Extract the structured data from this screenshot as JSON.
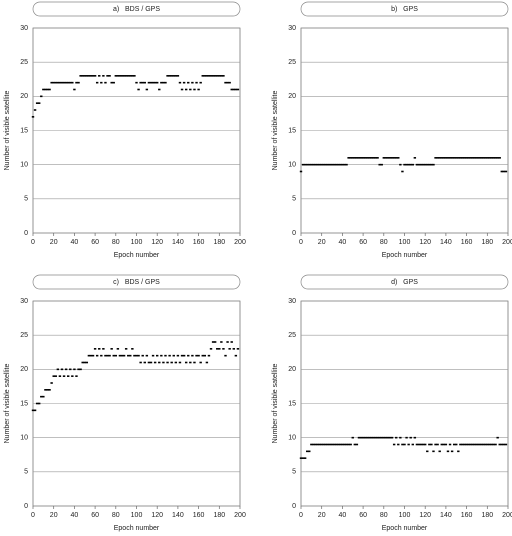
{
  "chart_data": [
    {
      "type": "scatter",
      "title": "a)   BDS / GPS",
      "xlabel": "Epoch number",
      "ylabel": "Number of visible satellite",
      "color": "#000000",
      "grid": true,
      "xlim": [
        0,
        200
      ],
      "ylim": [
        0,
        30
      ],
      "xticks": [
        0,
        20,
        40,
        60,
        80,
        100,
        120,
        140,
        160,
        180,
        200
      ],
      "yticks": [
        0,
        5,
        10,
        15,
        20,
        25,
        30
      ],
      "x": [
        0,
        2,
        4,
        6,
        8,
        10,
        12,
        14,
        16,
        18,
        20,
        22,
        24,
        26,
        28,
        30,
        32,
        34,
        36,
        38,
        40,
        42,
        44,
        46,
        48,
        50,
        52,
        54,
        56,
        58,
        60,
        62,
        64,
        66,
        68,
        70,
        72,
        74,
        76,
        78,
        80,
        82,
        84,
        86,
        88,
        90,
        92,
        94,
        96,
        98,
        100,
        102,
        104,
        106,
        108,
        110,
        112,
        114,
        116,
        118,
        120,
        122,
        124,
        126,
        128,
        130,
        132,
        134,
        136,
        138,
        140,
        142,
        144,
        146,
        148,
        150,
        152,
        154,
        156,
        158,
        160,
        162,
        164,
        166,
        168,
        170,
        172,
        174,
        176,
        178,
        180,
        182,
        184,
        186,
        188,
        190,
        192,
        194,
        196,
        198
      ],
      "values": [
        17,
        18,
        19,
        19,
        20,
        21,
        21,
        21,
        21,
        22,
        22,
        22,
        22,
        22,
        22,
        22,
        22,
        22,
        22,
        22,
        21,
        22,
        22,
        23,
        23,
        23,
        23,
        23,
        23,
        23,
        23,
        22,
        23,
        22,
        23,
        22,
        23,
        23,
        22,
        22,
        23,
        23,
        23,
        23,
        23,
        23,
        23,
        23,
        23,
        23,
        22,
        21,
        22,
        22,
        22,
        21,
        22,
        22,
        22,
        22,
        22,
        21,
        22,
        22,
        22,
        23,
        23,
        23,
        23,
        23,
        23,
        22,
        21,
        22,
        21,
        22,
        21,
        22,
        21,
        22,
        21,
        22,
        23,
        23,
        23,
        23,
        23,
        23,
        23,
        23,
        23,
        23,
        23,
        22,
        22,
        22,
        21,
        21,
        21,
        21
      ]
    },
    {
      "type": "scatter",
      "title": "b)   GPS",
      "xlabel": "Epoch number",
      "ylabel": "Number of visible satellite",
      "color": "#000000",
      "grid": true,
      "xlim": [
        0,
        200
      ],
      "ylim": [
        0,
        30
      ],
      "xticks": [
        0,
        20,
        40,
        60,
        80,
        100,
        120,
        140,
        160,
        180,
        200
      ],
      "yticks": [
        0,
        5,
        10,
        15,
        20,
        25,
        30
      ],
      "x": [
        0,
        2,
        4,
        6,
        8,
        10,
        12,
        14,
        16,
        18,
        20,
        22,
        24,
        26,
        28,
        30,
        32,
        34,
        36,
        38,
        40,
        42,
        44,
        46,
        48,
        50,
        52,
        54,
        56,
        58,
        60,
        62,
        64,
        66,
        68,
        70,
        72,
        74,
        76,
        78,
        80,
        82,
        84,
        86,
        88,
        90,
        92,
        94,
        96,
        98,
        100,
        102,
        104,
        106,
        108,
        110,
        112,
        114,
        116,
        118,
        120,
        122,
        124,
        126,
        128,
        130,
        132,
        134,
        136,
        138,
        140,
        142,
        144,
        146,
        148,
        150,
        152,
        154,
        156,
        158,
        160,
        162,
        164,
        166,
        168,
        170,
        172,
        174,
        176,
        178,
        180,
        182,
        184,
        186,
        188,
        190,
        192,
        194,
        196,
        198
      ],
      "values": [
        9,
        10,
        10,
        10,
        10,
        10,
        10,
        10,
        10,
        10,
        10,
        10,
        10,
        10,
        10,
        10,
        10,
        10,
        10,
        10,
        10,
        10,
        10,
        11,
        11,
        11,
        11,
        11,
        11,
        11,
        11,
        11,
        11,
        11,
        11,
        11,
        11,
        11,
        10,
        10,
        11,
        11,
        11,
        11,
        11,
        11,
        11,
        11,
        10,
        9,
        10,
        10,
        10,
        10,
        10,
        11,
        10,
        10,
        10,
        10,
        10,
        10,
        10,
        10,
        10,
        11,
        11,
        11,
        11,
        11,
        11,
        11,
        11,
        11,
        11,
        11,
        11,
        11,
        11,
        11,
        11,
        11,
        11,
        11,
        11,
        11,
        11,
        11,
        11,
        11,
        11,
        11,
        11,
        11,
        11,
        11,
        11,
        9,
        9,
        9
      ]
    },
    {
      "type": "scatter",
      "title": "c)   BDS / GPS",
      "xlabel": "Epoch number",
      "ylabel": "Number of visible satellite",
      "color": "#000000",
      "grid": true,
      "xlim": [
        0,
        200
      ],
      "ylim": [
        0,
        30
      ],
      "xticks": [
        0,
        20,
        40,
        60,
        80,
        100,
        120,
        140,
        160,
        180,
        200
      ],
      "yticks": [
        0,
        5,
        10,
        15,
        20,
        25,
        30
      ],
      "x": [
        0,
        2,
        4,
        6,
        8,
        10,
        12,
        14,
        16,
        18,
        20,
        22,
        24,
        26,
        28,
        30,
        32,
        34,
        36,
        38,
        40,
        42,
        44,
        46,
        48,
        50,
        52,
        54,
        56,
        58,
        60,
        62,
        64,
        66,
        68,
        70,
        72,
        74,
        76,
        78,
        80,
        82,
        84,
        86,
        88,
        90,
        92,
        94,
        96,
        98,
        100,
        102,
        104,
        106,
        108,
        110,
        112,
        114,
        116,
        118,
        120,
        122,
        124,
        126,
        128,
        130,
        132,
        134,
        136,
        138,
        140,
        142,
        144,
        146,
        148,
        150,
        152,
        154,
        156,
        158,
        160,
        162,
        164,
        166,
        168,
        170,
        172,
        174,
        176,
        178,
        180,
        182,
        184,
        186,
        188,
        190,
        192,
        194,
        196,
        198
      ],
      "values": [
        14,
        14,
        15,
        15,
        16,
        16,
        17,
        17,
        17,
        18,
        19,
        19,
        20,
        19,
        20,
        19,
        20,
        19,
        20,
        19,
        20,
        19,
        20,
        20,
        21,
        21,
        21,
        22,
        22,
        22,
        23,
        22,
        23,
        22,
        23,
        22,
        22,
        22,
        23,
        22,
        22,
        23,
        22,
        22,
        22,
        23,
        22,
        22,
        23,
        22,
        22,
        22,
        21,
        22,
        21,
        22,
        21,
        21,
        22,
        21,
        22,
        21,
        22,
        21,
        22,
        21,
        22,
        21,
        22,
        21,
        22,
        21,
        22,
        22,
        21,
        22,
        21,
        22,
        21,
        22,
        22,
        21,
        22,
        22,
        21,
        22,
        23,
        24,
        24,
        23,
        23,
        24,
        23,
        22,
        24,
        23,
        24,
        23,
        22,
        23
      ]
    },
    {
      "type": "scatter",
      "title": "d)   GPS",
      "xlabel": "Epoch number",
      "ylabel": "Number of visible satellite",
      "color": "#000000",
      "grid": true,
      "xlim": [
        0,
        200
      ],
      "ylim": [
        0,
        30
      ],
      "xticks": [
        0,
        20,
        40,
        60,
        80,
        100,
        120,
        140,
        160,
        180,
        200
      ],
      "yticks": [
        0,
        5,
        10,
        15,
        20,
        25,
        30
      ],
      "x": [
        0,
        2,
        4,
        6,
        8,
        10,
        12,
        14,
        16,
        18,
        20,
        22,
        24,
        26,
        28,
        30,
        32,
        34,
        36,
        38,
        40,
        42,
        44,
        46,
        48,
        50,
        52,
        54,
        56,
        58,
        60,
        62,
        64,
        66,
        68,
        70,
        72,
        74,
        76,
        78,
        80,
        82,
        84,
        86,
        88,
        90,
        92,
        94,
        96,
        98,
        100,
        102,
        104,
        106,
        108,
        110,
        112,
        114,
        116,
        118,
        120,
        122,
        124,
        126,
        128,
        130,
        132,
        134,
        136,
        138,
        140,
        142,
        144,
        146,
        148,
        150,
        152,
        154,
        156,
        158,
        160,
        162,
        164,
        166,
        168,
        170,
        172,
        174,
        176,
        178,
        180,
        182,
        184,
        186,
        188,
        190,
        192,
        194,
        196,
        198
      ],
      "values": [
        7,
        7,
        7,
        8,
        8,
        9,
        9,
        9,
        9,
        9,
        9,
        9,
        9,
        9,
        9,
        9,
        9,
        9,
        9,
        9,
        9,
        9,
        9,
        9,
        9,
        10,
        9,
        9,
        10,
        10,
        10,
        10,
        10,
        10,
        10,
        10,
        10,
        10,
        10,
        10,
        10,
        10,
        10,
        10,
        10,
        9,
        10,
        9,
        10,
        9,
        9,
        10,
        9,
        10,
        9,
        10,
        9,
        9,
        9,
        9,
        9,
        8,
        9,
        9,
        8,
        9,
        9,
        8,
        9,
        9,
        9,
        8,
        9,
        8,
        9,
        9,
        8,
        9,
        9,
        9,
        9,
        9,
        9,
        9,
        9,
        9,
        9,
        9,
        9,
        9,
        9,
        9,
        9,
        9,
        9,
        10,
        9,
        9,
        9,
        9
      ]
    }
  ]
}
